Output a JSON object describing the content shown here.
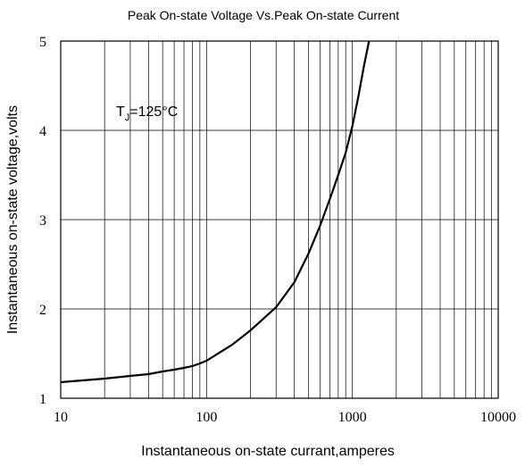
{
  "chart_data": {
    "type": "line",
    "title": "Peak On-state Voltage Vs.Peak On-state Current",
    "xlabel": "Instantaneous on-state currant,amperes",
    "ylabel": "Instantaneous on-state voltage,volts",
    "xscale": "log",
    "xlim": [
      10,
      10000
    ],
    "ylim": [
      1,
      5
    ],
    "x_ticks": [
      "10",
      "100",
      "1000",
      "10000"
    ],
    "y_ticks": [
      "1",
      "2",
      "3",
      "4",
      "5"
    ],
    "grid": true,
    "annotation": {
      "main": "T",
      "sub": "J",
      "rest": "=125°C"
    },
    "series": [
      {
        "x": [
          10,
          20,
          30,
          40,
          50,
          60,
          70,
          80,
          90,
          100,
          150,
          200,
          300,
          400,
          500,
          600,
          700,
          800,
          900,
          1000,
          1100,
          1200,
          1300
        ],
        "y": [
          1.18,
          1.22,
          1.25,
          1.27,
          1.3,
          1.32,
          1.34,
          1.36,
          1.39,
          1.42,
          1.6,
          1.76,
          2.02,
          2.3,
          2.62,
          2.93,
          3.23,
          3.5,
          3.75,
          4.05,
          4.38,
          4.72,
          5.0
        ]
      }
    ]
  }
}
